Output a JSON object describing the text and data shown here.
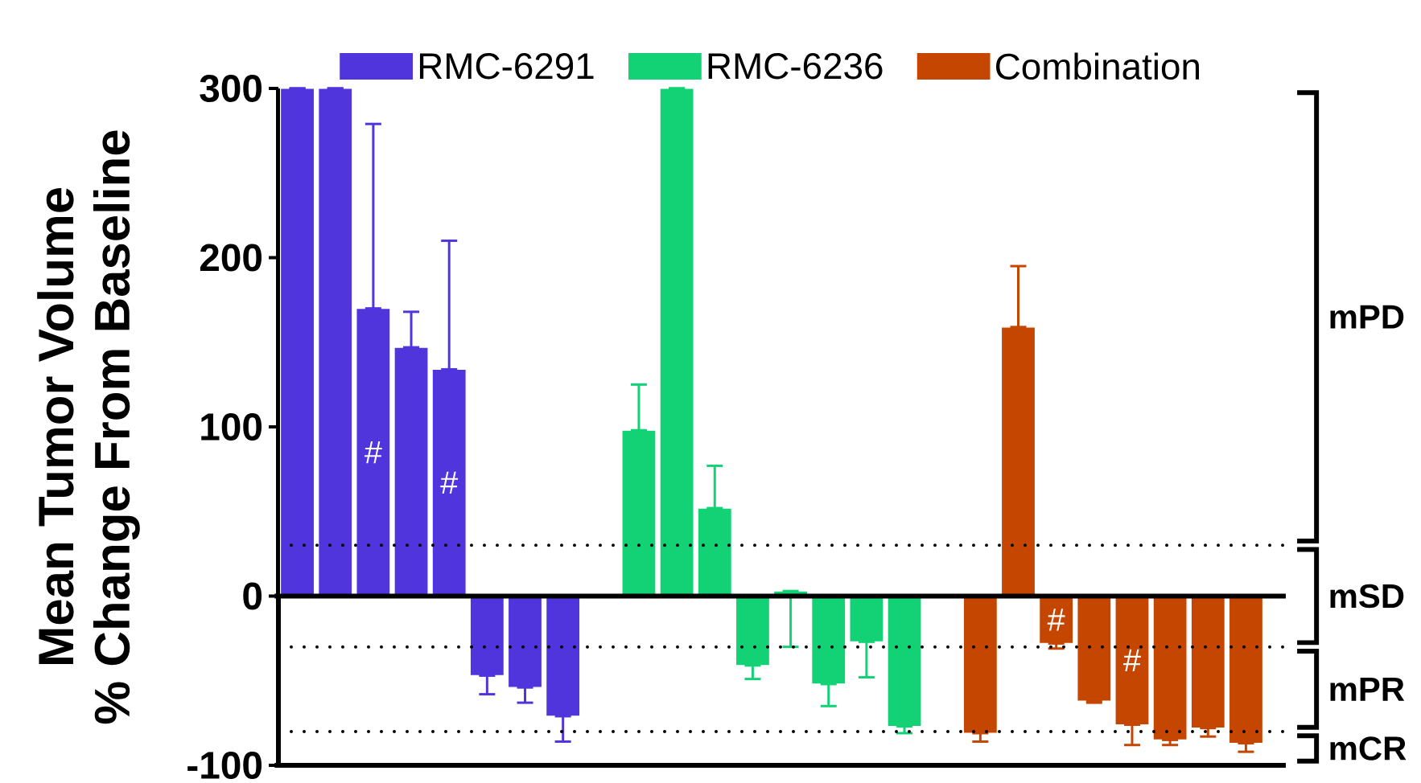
{
  "chart_data": {
    "type": "bar",
    "ylabel": "Mean Tumor Volume % Change From Baseline",
    "categories": [
      null,
      null,
      null,
      null,
      null,
      null,
      null,
      null,
      null,
      null,
      null,
      null,
      null,
      null,
      null,
      null,
      null,
      null,
      null,
      null,
      null,
      null,
      null,
      null,
      null,
      null
    ],
    "ylim": [
      -100,
      300
    ],
    "yticks": [
      -100,
      0,
      100,
      200,
      300
    ],
    "legend": "top",
    "series": [
      {
        "name": "RMC-6291",
        "color": "#5035dd",
        "values": [
          300,
          300,
          170,
          147,
          134,
          -47,
          -54,
          -71,
          null,
          null,
          null,
          null,
          null,
          null,
          null,
          null,
          null,
          null,
          null,
          null,
          null,
          null,
          null,
          null,
          null,
          null
        ],
        "errors": [
          null,
          null,
          [
            170,
            279
          ],
          [
            147,
            168
          ],
          [
            134,
            210
          ],
          [
            -58,
            -47
          ],
          [
            -63,
            -54
          ],
          [
            -86,
            -71
          ],
          null,
          null,
          null,
          null,
          null,
          null,
          null,
          null,
          null,
          null,
          null,
          null,
          null,
          null,
          null,
          null,
          null,
          null
        ],
        "value_labels": [
          null,
          null,
          "#",
          null,
          "#",
          null,
          null,
          null,
          null,
          null,
          null,
          null,
          null,
          null,
          null,
          null,
          null,
          null,
          null,
          null,
          null,
          null,
          null,
          null,
          null,
          null
        ]
      },
      {
        "name": "RMC-6236",
        "color": "#12d275",
        "values": [
          null,
          null,
          null,
          null,
          null,
          null,
          null,
          null,
          null,
          98,
          300,
          52,
          -41,
          3,
          -52,
          -27,
          -77,
          null,
          null,
          null,
          null,
          null,
          null,
          null,
          null,
          null
        ],
        "errors": [
          null,
          null,
          null,
          null,
          null,
          null,
          null,
          null,
          null,
          [
            98,
            125
          ],
          null,
          [
            52,
            77
          ],
          [
            -49,
            -41
          ],
          [
            -30,
            3
          ],
          [
            -65,
            -52
          ],
          [
            -48,
            -27
          ],
          [
            -81,
            -77
          ],
          null,
          null,
          null,
          null,
          null,
          null,
          null,
          null,
          null
        ]
      },
      {
        "name": "Combination",
        "color": "#c44601",
        "values": [
          null,
          null,
          null,
          null,
          null,
          null,
          null,
          null,
          null,
          null,
          null,
          null,
          null,
          null,
          null,
          null,
          null,
          null,
          -81,
          159,
          -28,
          -62,
          -76,
          -85,
          -78,
          -87
        ],
        "errors": [
          null,
          null,
          null,
          null,
          null,
          null,
          null,
          null,
          null,
          null,
          null,
          null,
          null,
          null,
          null,
          null,
          null,
          null,
          [
            -86,
            -81
          ],
          [
            159,
            195
          ],
          [
            -31,
            -28
          ],
          [
            -63,
            -62
          ],
          [
            -88,
            -76
          ],
          [
            -88,
            -85
          ],
          [
            -83,
            -78
          ],
          [
            -92,
            -87
          ]
        ],
        "value_labels": [
          null,
          null,
          null,
          null,
          null,
          null,
          null,
          null,
          null,
          null,
          null,
          null,
          null,
          null,
          null,
          null,
          null,
          null,
          null,
          null,
          "#",
          null,
          "#",
          null,
          null,
          null
        ]
      }
    ],
    "ref_lines": [
      {
        "axis": "y",
        "value": 30,
        "color": "#000000",
        "line_style": "dotted"
      },
      {
        "axis": "y",
        "value": -30,
        "color": "#000000",
        "line_style": "dotted"
      },
      {
        "axis": "y",
        "value": -80,
        "color": "#000000",
        "line_style": "dotted"
      }
    ],
    "annotations": [
      "mPD",
      "mSD",
      "mPR",
      "mCR"
    ]
  }
}
